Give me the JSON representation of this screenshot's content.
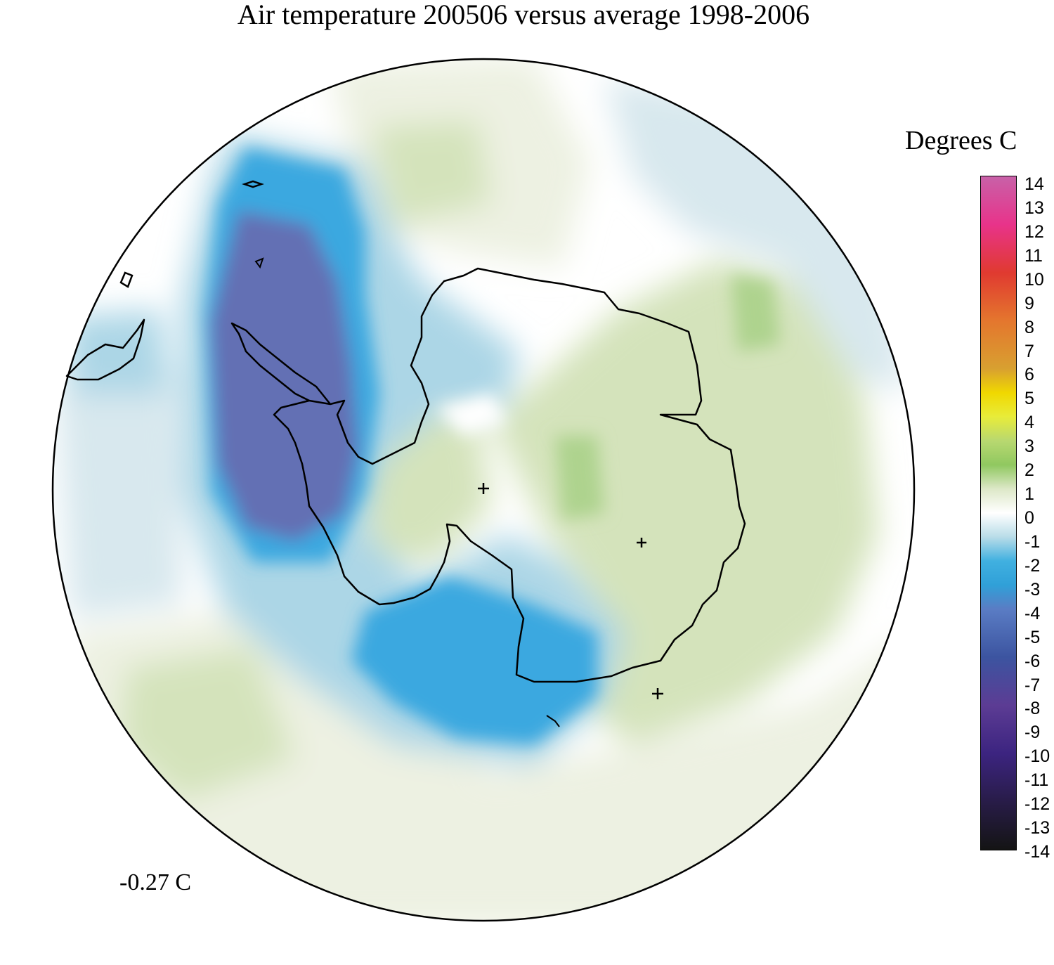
{
  "title": "Air temperature 200506 versus average 1998-2006",
  "legend": {
    "title": "Degrees C",
    "ticks": [
      "14",
      "13",
      "12",
      "11",
      "10",
      "9",
      "8",
      "7",
      "6",
      "5",
      "4",
      "3",
      "2",
      "1",
      "0",
      "-1",
      "-2",
      "-3",
      "-4",
      "-5",
      "-6",
      "-7",
      "-8",
      "-9",
      "-10",
      "-11",
      "-12",
      "-13",
      "-14"
    ],
    "color_stops": [
      {
        "value": 14,
        "color": "#c861a8"
      },
      {
        "value": 12,
        "color": "#e8338a"
      },
      {
        "value": 10,
        "color": "#e03a30"
      },
      {
        "value": 8,
        "color": "#e4762e"
      },
      {
        "value": 6,
        "color": "#d8a030"
      },
      {
        "value": 5,
        "color": "#f0d800"
      },
      {
        "value": 4,
        "color": "#e8ec3a"
      },
      {
        "value": 3,
        "color": "#b8d870"
      },
      {
        "value": 2,
        "color": "#90c860"
      },
      {
        "value": 1,
        "color": "#dde8c8"
      },
      {
        "value": 0,
        "color": "#ffffff"
      },
      {
        "value": -1,
        "color": "#b8dce8"
      },
      {
        "value": -2,
        "color": "#40b0e0"
      },
      {
        "value": -3,
        "color": "#30a0d8"
      },
      {
        "value": -4,
        "color": "#5a7cc4"
      },
      {
        "value": -6,
        "color": "#3c54a0"
      },
      {
        "value": -8,
        "color": "#5c3c94"
      },
      {
        "value": -10,
        "color": "#3c2480"
      },
      {
        "value": -12,
        "color": "#281c48"
      },
      {
        "value": -14,
        "color": "#141414"
      }
    ]
  },
  "mean_anomaly": "-0.27 C",
  "region_colors": {
    "cold_strong": "#6470b4",
    "cold_mid": "#3aa8e0",
    "cold_light": "#acd6e6",
    "cool_faint": "#d8e8ee",
    "warm_faint": "#edf1e2",
    "warm_light": "#d4e3bb",
    "warm_mid": "#aed38e"
  }
}
